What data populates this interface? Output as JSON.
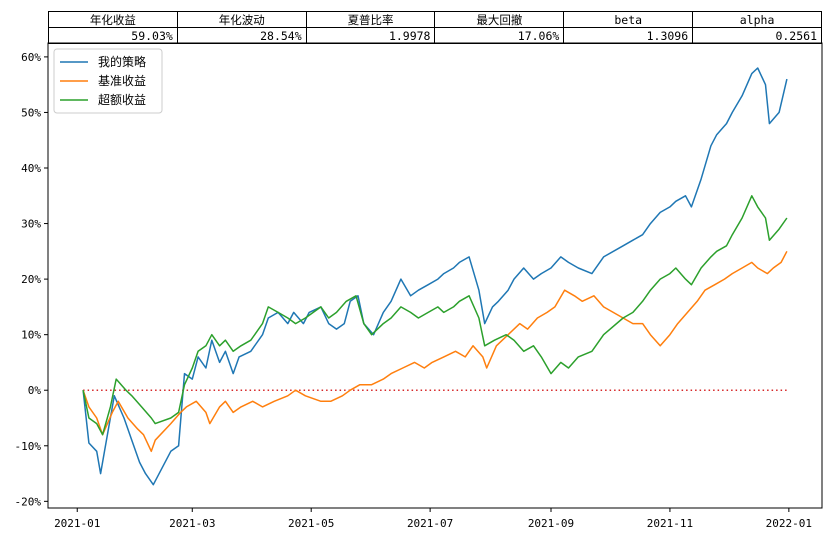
{
  "stats_table": {
    "headers": [
      "年化收益",
      "年化波动",
      "夏普比率",
      "最大回撤",
      "beta",
      "alpha"
    ],
    "values": [
      "59.03%",
      "28.54%",
      "1.9978",
      "17.06%",
      "1.3096",
      "0.2561"
    ]
  },
  "chart_data": {
    "type": "line",
    "title": "",
    "xlabel": "",
    "ylabel": "",
    "x_ticks": [
      "2021-01",
      "2021-03",
      "2021-05",
      "2021-07",
      "2021-09",
      "2021-11",
      "2022-01"
    ],
    "y_ticks": [
      "-20%",
      "-10%",
      "0%",
      "10%",
      "20%",
      "30%",
      "40%",
      "50%",
      "60%"
    ],
    "xlim": [
      "2020-12-17",
      "2022-01-18"
    ],
    "ylim": [
      -21.2,
      62.5
    ],
    "legend_position": "upper-left",
    "zero_line": {
      "value": 0,
      "style": "dotted",
      "color": "#d62728"
    },
    "series": [
      {
        "name": "我的策略",
        "color": "#1f77b4",
        "points": [
          [
            "2021-01-04",
            0
          ],
          [
            "2021-01-07",
            -9.5
          ],
          [
            "2021-01-11",
            -11
          ],
          [
            "2021-01-13",
            -15
          ],
          [
            "2021-01-15",
            -11
          ],
          [
            "2021-01-20",
            -1
          ],
          [
            "2021-01-25",
            -5
          ],
          [
            "2021-01-29",
            -9
          ],
          [
            "2021-02-02",
            -13
          ],
          [
            "2021-02-05",
            -15
          ],
          [
            "2021-02-09",
            -17
          ],
          [
            "2021-02-18",
            -11
          ],
          [
            "2021-02-22",
            -10
          ],
          [
            "2021-02-25",
            3
          ],
          [
            "2021-03-01",
            2
          ],
          [
            "2021-03-04",
            6
          ],
          [
            "2021-03-08",
            4
          ],
          [
            "2021-03-11",
            9
          ],
          [
            "2021-03-15",
            5
          ],
          [
            "2021-03-18",
            7
          ],
          [
            "2021-03-22",
            3
          ],
          [
            "2021-03-25",
            6
          ],
          [
            "2021-03-31",
            7
          ],
          [
            "2021-04-06",
            10
          ],
          [
            "2021-04-09",
            13
          ],
          [
            "2021-04-14",
            14
          ],
          [
            "2021-04-19",
            12
          ],
          [
            "2021-04-22",
            14
          ],
          [
            "2021-04-27",
            12
          ],
          [
            "2021-04-30",
            14
          ],
          [
            "2021-05-06",
            15
          ],
          [
            "2021-05-10",
            12
          ],
          [
            "2021-05-14",
            11
          ],
          [
            "2021-05-18",
            12
          ],
          [
            "2021-05-21",
            16
          ],
          [
            "2021-05-25",
            17
          ],
          [
            "2021-05-28",
            12
          ],
          [
            "2021-06-02",
            10
          ],
          [
            "2021-06-07",
            14
          ],
          [
            "2021-06-11",
            16
          ],
          [
            "2021-06-16",
            20
          ],
          [
            "2021-06-21",
            17
          ],
          [
            "2021-06-25",
            18
          ],
          [
            "2021-06-30",
            19
          ],
          [
            "2021-07-05",
            20
          ],
          [
            "2021-07-08",
            21
          ],
          [
            "2021-07-13",
            22
          ],
          [
            "2021-07-16",
            23
          ],
          [
            "2021-07-21",
            24
          ],
          [
            "2021-07-26",
            18
          ],
          [
            "2021-07-29",
            12
          ],
          [
            "2021-08-02",
            15
          ],
          [
            "2021-08-05",
            16
          ],
          [
            "2021-08-10",
            18
          ],
          [
            "2021-08-13",
            20
          ],
          [
            "2021-08-18",
            22
          ],
          [
            "2021-08-23",
            20
          ],
          [
            "2021-08-27",
            21
          ],
          [
            "2021-09-01",
            22
          ],
          [
            "2021-09-06",
            24
          ],
          [
            "2021-09-10",
            23
          ],
          [
            "2021-09-15",
            22
          ],
          [
            "2021-09-22",
            21
          ],
          [
            "2021-09-28",
            24
          ],
          [
            "2021-10-08",
            26
          ],
          [
            "2021-10-13",
            27
          ],
          [
            "2021-10-18",
            28
          ],
          [
            "2021-10-22",
            30
          ],
          [
            "2021-10-27",
            32
          ],
          [
            "2021-11-01",
            33
          ],
          [
            "2021-11-04",
            34
          ],
          [
            "2021-11-09",
            35
          ],
          [
            "2021-11-12",
            33
          ],
          [
            "2021-11-17",
            38
          ],
          [
            "2021-11-22",
            44
          ],
          [
            "2021-11-25",
            46
          ],
          [
            "2021-11-30",
            48
          ],
          [
            "2021-12-03",
            50
          ],
          [
            "2021-12-08",
            53
          ],
          [
            "2021-12-13",
            57
          ],
          [
            "2021-12-16",
            58
          ],
          [
            "2021-12-20",
            55
          ],
          [
            "2021-12-22",
            48
          ],
          [
            "2021-12-27",
            50
          ],
          [
            "2021-12-31",
            56
          ]
        ]
      },
      {
        "name": "基准收益",
        "color": "#ff7f0e",
        "points": [
          [
            "2021-01-04",
            0
          ],
          [
            "2021-01-07",
            -3
          ],
          [
            "2021-01-11",
            -5
          ],
          [
            "2021-01-14",
            -8
          ],
          [
            "2021-01-19",
            -4
          ],
          [
            "2021-01-22",
            -2
          ],
          [
            "2021-01-27",
            -5
          ],
          [
            "2021-02-01",
            -7
          ],
          [
            "2021-02-04",
            -8
          ],
          [
            "2021-02-08",
            -11
          ],
          [
            "2021-02-10",
            -9
          ],
          [
            "2021-02-18",
            -6
          ],
          [
            "2021-02-23",
            -4
          ],
          [
            "2021-02-26",
            -3
          ],
          [
            "2021-03-03",
            -2
          ],
          [
            "2021-03-08",
            -4
          ],
          [
            "2021-03-10",
            -6
          ],
          [
            "2021-03-15",
            -3
          ],
          [
            "2021-03-18",
            -2
          ],
          [
            "2021-03-22",
            -4
          ],
          [
            "2021-03-26",
            -3
          ],
          [
            "2021-04-01",
            -2
          ],
          [
            "2021-04-06",
            -3
          ],
          [
            "2021-04-12",
            -2
          ],
          [
            "2021-04-19",
            -1
          ],
          [
            "2021-04-23",
            0
          ],
          [
            "2021-04-28",
            -1
          ],
          [
            "2021-05-06",
            -2
          ],
          [
            "2021-05-11",
            -2
          ],
          [
            "2021-05-17",
            -1
          ],
          [
            "2021-05-21",
            0
          ],
          [
            "2021-05-26",
            1
          ],
          [
            "2021-06-01",
            1
          ],
          [
            "2021-06-07",
            2
          ],
          [
            "2021-06-11",
            3
          ],
          [
            "2021-06-17",
            4
          ],
          [
            "2021-06-23",
            5
          ],
          [
            "2021-06-28",
            4
          ],
          [
            "2021-07-02",
            5
          ],
          [
            "2021-07-08",
            6
          ],
          [
            "2021-07-14",
            7
          ],
          [
            "2021-07-19",
            6
          ],
          [
            "2021-07-23",
            8
          ],
          [
            "2021-07-28",
            6
          ],
          [
            "2021-07-30",
            4
          ],
          [
            "2021-08-04",
            8
          ],
          [
            "2021-08-10",
            10
          ],
          [
            "2021-08-16",
            12
          ],
          [
            "2021-08-20",
            11
          ],
          [
            "2021-08-25",
            13
          ],
          [
            "2021-08-30",
            14
          ],
          [
            "2021-09-03",
            15
          ],
          [
            "2021-09-08",
            18
          ],
          [
            "2021-09-13",
            17
          ],
          [
            "2021-09-17",
            16
          ],
          [
            "2021-09-23",
            17
          ],
          [
            "2021-09-28",
            15
          ],
          [
            "2021-10-08",
            13
          ],
          [
            "2021-10-13",
            12
          ],
          [
            "2021-10-18",
            12
          ],
          [
            "2021-10-22",
            10
          ],
          [
            "2021-10-27",
            8
          ],
          [
            "2021-11-01",
            10
          ],
          [
            "2021-11-05",
            12
          ],
          [
            "2021-11-10",
            14
          ],
          [
            "2021-11-15",
            16
          ],
          [
            "2021-11-19",
            18
          ],
          [
            "2021-11-24",
            19
          ],
          [
            "2021-11-29",
            20
          ],
          [
            "2021-12-03",
            21
          ],
          [
            "2021-12-08",
            22
          ],
          [
            "2021-12-13",
            23
          ],
          [
            "2021-12-16",
            22
          ],
          [
            "2021-12-21",
            21
          ],
          [
            "2021-12-24",
            22
          ],
          [
            "2021-12-28",
            23
          ],
          [
            "2021-12-31",
            25
          ]
        ]
      },
      {
        "name": "超额收益",
        "color": "#2ca02c",
        "points": [
          [
            "2021-01-04",
            0
          ],
          [
            "2021-01-07",
            -5
          ],
          [
            "2021-01-11",
            -6
          ],
          [
            "2021-01-14",
            -8
          ],
          [
            "2021-01-18",
            -3
          ],
          [
            "2021-01-21",
            2
          ],
          [
            "2021-01-26",
            0
          ],
          [
            "2021-01-29",
            -1
          ],
          [
            "2021-02-03",
            -3
          ],
          [
            "2021-02-08",
            -5
          ],
          [
            "2021-02-10",
            -6
          ],
          [
            "2021-02-18",
            -5
          ],
          [
            "2021-02-22",
            -4
          ],
          [
            "2021-02-25",
            1
          ],
          [
            "2021-03-01",
            4
          ],
          [
            "2021-03-04",
            7
          ],
          [
            "2021-03-08",
            8
          ],
          [
            "2021-03-11",
            10
          ],
          [
            "2021-03-15",
            8
          ],
          [
            "2021-03-18",
            9
          ],
          [
            "2021-03-22",
            7
          ],
          [
            "2021-03-26",
            8
          ],
          [
            "2021-03-31",
            9
          ],
          [
            "2021-04-06",
            12
          ],
          [
            "2021-04-09",
            15
          ],
          [
            "2021-04-14",
            14
          ],
          [
            "2021-04-19",
            13
          ],
          [
            "2021-04-23",
            12
          ],
          [
            "2021-04-28",
            13
          ],
          [
            "2021-05-06",
            15
          ],
          [
            "2021-05-10",
            13
          ],
          [
            "2021-05-14",
            14
          ],
          [
            "2021-05-19",
            16
          ],
          [
            "2021-05-24",
            17
          ],
          [
            "2021-05-28",
            12
          ],
          [
            "2021-06-01",
            10
          ],
          [
            "2021-06-07",
            12
          ],
          [
            "2021-06-11",
            13
          ],
          [
            "2021-06-16",
            15
          ],
          [
            "2021-06-21",
            14
          ],
          [
            "2021-06-25",
            13
          ],
          [
            "2021-06-30",
            14
          ],
          [
            "2021-07-05",
            15
          ],
          [
            "2021-07-08",
            14
          ],
          [
            "2021-07-13",
            15
          ],
          [
            "2021-07-16",
            16
          ],
          [
            "2021-07-21",
            17
          ],
          [
            "2021-07-26",
            13
          ],
          [
            "2021-07-29",
            8
          ],
          [
            "2021-08-03",
            9
          ],
          [
            "2021-08-09",
            10
          ],
          [
            "2021-08-13",
            9
          ],
          [
            "2021-08-18",
            7
          ],
          [
            "2021-08-23",
            8
          ],
          [
            "2021-08-27",
            6
          ],
          [
            "2021-09-01",
            3
          ],
          [
            "2021-09-06",
            5
          ],
          [
            "2021-09-10",
            4
          ],
          [
            "2021-09-15",
            6
          ],
          [
            "2021-09-22",
            7
          ],
          [
            "2021-09-28",
            10
          ],
          [
            "2021-10-08",
            13
          ],
          [
            "2021-10-13",
            14
          ],
          [
            "2021-10-18",
            16
          ],
          [
            "2021-10-22",
            18
          ],
          [
            "2021-10-27",
            20
          ],
          [
            "2021-11-01",
            21
          ],
          [
            "2021-11-04",
            22
          ],
          [
            "2021-11-09",
            20
          ],
          [
            "2021-11-12",
            19
          ],
          [
            "2021-11-17",
            22
          ],
          [
            "2021-11-22",
            24
          ],
          [
            "2021-11-25",
            25
          ],
          [
            "2021-11-30",
            26
          ],
          [
            "2021-12-03",
            28
          ],
          [
            "2021-12-08",
            31
          ],
          [
            "2021-12-13",
            35
          ],
          [
            "2021-12-16",
            33
          ],
          [
            "2021-12-20",
            31
          ],
          [
            "2021-12-22",
            27
          ],
          [
            "2021-12-27",
            29
          ],
          [
            "2021-12-31",
            31
          ]
        ]
      }
    ]
  }
}
